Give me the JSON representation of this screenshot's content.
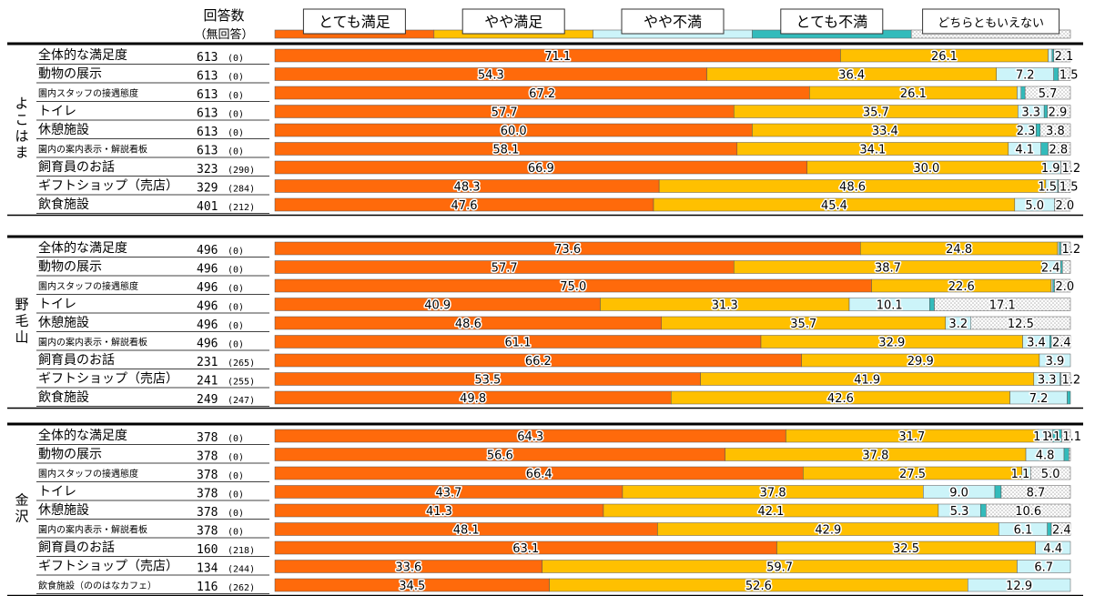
{
  "header": {
    "count_title": "回答数",
    "noanswer_title": "（無回答）"
  },
  "colors": {
    "very_satisfied": "#FF6A0B",
    "somewhat_satisfied": "#FFC000",
    "somewhat_dissatisfied": "#CCF4F9",
    "very_dissatisfied": "#33BBBB",
    "neither": "#F4F4F4",
    "divider": "#000000"
  },
  "chart_data": {
    "type": "bar",
    "orientation": "horizontal-stacked-100",
    "series": [
      {
        "key": "very_satisfied",
        "name": "とても満足"
      },
      {
        "key": "somewhat_satisfied",
        "name": "やや満足"
      },
      {
        "key": "somewhat_dissatisfied",
        "name": "やや不満"
      },
      {
        "key": "very_dissatisfied",
        "name": "とても不満"
      },
      {
        "key": "neither",
        "name": "どちらともいえない"
      }
    ],
    "groups": [
      {
        "name": "よこはま",
        "rows": [
          {
            "label": "全体的な満足度",
            "count": "613",
            "noanswer": "(0)",
            "values": [
              71.1,
              26.1,
              0.5,
              0.2,
              2.1
            ],
            "labels": [
              "71.1",
              "26.1",
              "",
              "",
              "2.1"
            ]
          },
          {
            "label": "動物の展示",
            "count": "613",
            "noanswer": "(0)",
            "values": [
              54.3,
              36.4,
              7.2,
              0.6,
              1.5
            ],
            "labels": [
              "54.3",
              "36.4",
              "7.2",
              "",
              "1.5"
            ]
          },
          {
            "label": "園内スタッフの接遇態度",
            "count": "613",
            "noanswer": "(0)",
            "small": true,
            "values": [
              67.2,
              26.1,
              0.5,
              0.5,
              5.7
            ],
            "labels": [
              "67.2",
              "26.1",
              "",
              "",
              "5.7"
            ]
          },
          {
            "label": "トイレ",
            "count": "613",
            "noanswer": "(0)",
            "values": [
              57.7,
              35.7,
              3.3,
              0.4,
              2.9
            ],
            "labels": [
              "57.7",
              "35.7",
              "3.3",
              "",
              "2.9"
            ]
          },
          {
            "label": "休憩施設",
            "count": "613",
            "noanswer": "(0)",
            "values": [
              60.0,
              33.4,
              2.3,
              0.5,
              3.8
            ],
            "labels": [
              "60.0",
              "33.4",
              "2.3",
              "",
              "3.8"
            ]
          },
          {
            "label": "園内の案内表示・解説看板",
            "count": "613",
            "noanswer": "(0)",
            "small": true,
            "values": [
              58.1,
              34.1,
              4.1,
              0.9,
              2.8
            ],
            "labels": [
              "58.1",
              "34.1",
              "4.1",
              "",
              "2.8"
            ]
          },
          {
            "label": "飼育員のお話",
            "count": "323",
            "noanswer": "(290)",
            "values": [
              66.9,
              30.0,
              1.9,
              0.0,
              1.2
            ],
            "labels": [
              "66.9",
              "30.0",
              "1.9",
              "",
              "1.2"
            ]
          },
          {
            "label": "ギフトショップ（売店）",
            "count": "329",
            "noanswer": "(284)",
            "values": [
              48.3,
              48.6,
              1.5,
              0.1,
              1.5
            ],
            "labels": [
              "48.3",
              "48.6",
              "1.5",
              "",
              "1.5"
            ]
          },
          {
            "label": "飲食施設",
            "count": "401",
            "noanswer": "(212)",
            "values": [
              47.6,
              45.4,
              5.0,
              0.0,
              2.0
            ],
            "labels": [
              "47.6",
              "45.4",
              "5.0",
              "",
              "2.0"
            ]
          }
        ]
      },
      {
        "name": "野毛山",
        "rows": [
          {
            "label": "全体的な満足度",
            "count": "496",
            "noanswer": "(0)",
            "values": [
              73.6,
              24.8,
              0.2,
              0.2,
              1.2
            ],
            "labels": [
              "73.6",
              "24.8",
              "",
              "",
              "1.2"
            ]
          },
          {
            "label": "動物の展示",
            "count": "496",
            "noanswer": "(0)",
            "values": [
              57.7,
              38.7,
              2.4,
              0.2,
              1.0
            ],
            "labels": [
              "57.7",
              "38.7",
              "2.4",
              "",
              ""
            ]
          },
          {
            "label": "園内スタッフの接遇態度",
            "count": "496",
            "noanswer": "(0)",
            "small": true,
            "values": [
              75.0,
              22.6,
              0.2,
              0.2,
              2.0
            ],
            "labels": [
              "75.0",
              "22.6",
              "",
              "",
              "2.0"
            ]
          },
          {
            "label": "トイレ",
            "count": "496",
            "noanswer": "(0)",
            "values": [
              40.9,
              31.3,
              10.1,
              0.6,
              17.1
            ],
            "labels": [
              "40.9",
              "31.3",
              "10.1",
              "",
              "17.1"
            ]
          },
          {
            "label": "休憩施設",
            "count": "496",
            "noanswer": "(0)",
            "values": [
              48.6,
              35.7,
              3.2,
              0.0,
              12.5
            ],
            "labels": [
              "48.6",
              "35.7",
              "3.2",
              "",
              "12.5"
            ]
          },
          {
            "label": "園内の案内表示・解説看板",
            "count": "496",
            "noanswer": "(0)",
            "small": true,
            "values": [
              61.1,
              32.9,
              3.4,
              0.2,
              2.4
            ],
            "labels": [
              "61.1",
              "32.9",
              "3.4",
              "",
              "2.4"
            ]
          },
          {
            "label": "飼育員のお話",
            "count": "231",
            "noanswer": "(265)",
            "values": [
              66.2,
              29.9,
              3.9,
              0.0,
              0.0
            ],
            "labels": [
              "66.2",
              "29.9",
              "3.9",
              "",
              ""
            ]
          },
          {
            "label": "ギフトショップ（売店）",
            "count": "241",
            "noanswer": "(255)",
            "values": [
              53.5,
              41.9,
              3.3,
              0.1,
              1.2
            ],
            "labels": [
              "53.5",
              "41.9",
              "3.3",
              "",
              "1.2"
            ]
          },
          {
            "label": "飲食施設",
            "count": "249",
            "noanswer": "(247)",
            "values": [
              49.8,
              42.6,
              7.2,
              0.4,
              0.0
            ],
            "labels": [
              "49.8",
              "42.6",
              "7.2",
              "",
              ""
            ]
          }
        ]
      },
      {
        "name": "金沢",
        "rows": [
          {
            "label": "全体的な満足度",
            "count": "378",
            "noanswer": "(0)",
            "values": [
              64.3,
              31.7,
              1.9,
              1.1,
              1.1
            ],
            "labels": [
              "64.3",
              "31.7",
              "1.9",
              "1.1",
              "1.1"
            ]
          },
          {
            "label": "動物の展示",
            "count": "378",
            "noanswer": "(0)",
            "values": [
              56.6,
              37.8,
              4.8,
              0.6,
              0.2
            ],
            "labels": [
              "56.6",
              "37.8",
              "4.8",
              "",
              ""
            ]
          },
          {
            "label": "園内スタッフの接遇態度",
            "count": "378",
            "noanswer": "(0)",
            "small": true,
            "values": [
              66.4,
              27.5,
              1.1,
              0.0,
              5.0
            ],
            "labels": [
              "66.4",
              "27.5",
              "1.1",
              "",
              "5.0"
            ]
          },
          {
            "label": "トイレ",
            "count": "378",
            "noanswer": "(0)",
            "values": [
              43.7,
              37.8,
              9.0,
              0.8,
              8.7
            ],
            "labels": [
              "43.7",
              "37.8",
              "9.0",
              "",
              "8.7"
            ]
          },
          {
            "label": "休憩施設",
            "count": "378",
            "noanswer": "(0)",
            "values": [
              41.3,
              42.1,
              5.3,
              0.7,
              10.6
            ],
            "labels": [
              "41.3",
              "42.1",
              "5.3",
              "",
              "10.6"
            ]
          },
          {
            "label": "園内の案内表示・解説看板",
            "count": "378",
            "noanswer": "(0)",
            "small": true,
            "values": [
              48.1,
              42.9,
              6.1,
              0.5,
              2.4
            ],
            "labels": [
              "48.1",
              "42.9",
              "6.1",
              "",
              "2.4"
            ]
          },
          {
            "label": "飼育員のお話",
            "count": "160",
            "noanswer": "(218)",
            "values": [
              63.1,
              32.5,
              4.4,
              0.0,
              0.0
            ],
            "labels": [
              "63.1",
              "32.5",
              "4.4",
              "",
              ""
            ]
          },
          {
            "label": "ギフトショップ（売店）",
            "count": "134",
            "noanswer": "(244)",
            "values": [
              33.6,
              59.7,
              6.7,
              0.0,
              0.0
            ],
            "labels": [
              "33.6",
              "59.7",
              "6.7",
              "",
              ""
            ]
          },
          {
            "label": "飲食施設（ののはなカフェ）",
            "count": "116",
            "noanswer": "(262)",
            "small": true,
            "values": [
              34.5,
              52.6,
              12.9,
              0.0,
              0.0
            ],
            "labels": [
              "34.5",
              "52.6",
              "12.9",
              "",
              ""
            ]
          }
        ]
      }
    ]
  }
}
